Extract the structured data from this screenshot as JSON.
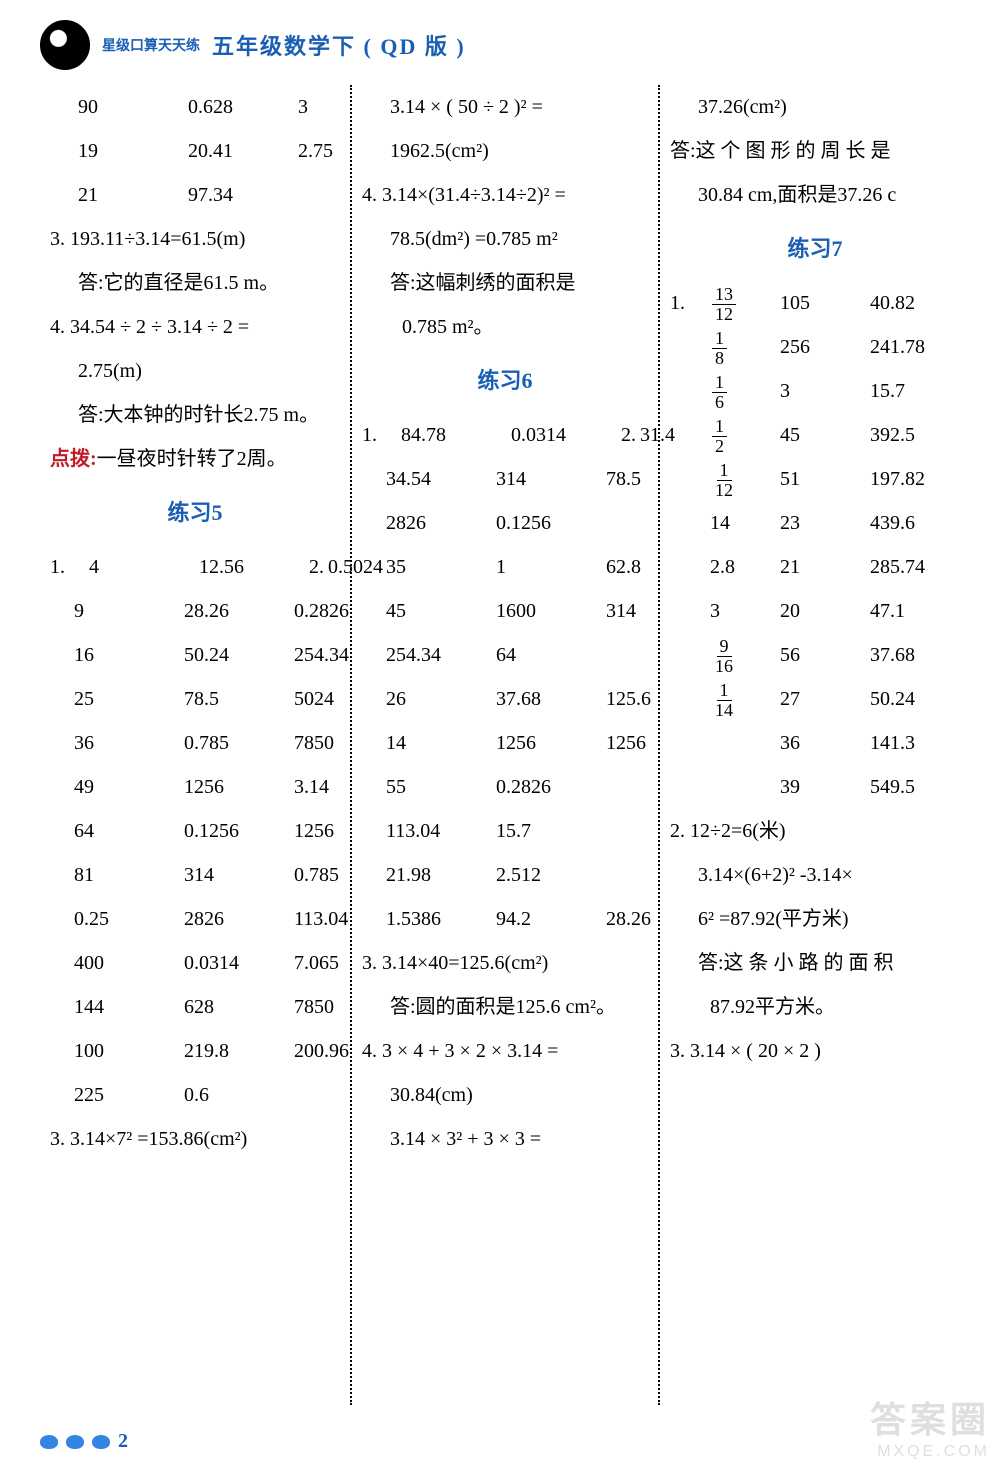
{
  "header": {
    "logo_sub": "星级口算天天练",
    "title": "五年级数学下 ( QD 版 )"
  },
  "col1": {
    "top_rows": [
      [
        "90",
        "0.628",
        "3"
      ],
      [
        "19",
        "20.41",
        "2.75"
      ],
      [
        "21",
        "97.34",
        ""
      ]
    ],
    "q3": "3. 193.11÷3.14=61.5(m)",
    "q3_ans": "答:它的直径是61.5 m。",
    "q4a": "4. 34.54 ÷ 2 ÷ 3.14 ÷ 2 =",
    "q4b": "2.75(m)",
    "q4_ans": "答:大本钟的时针长2.75 m。",
    "hint_label": "点拨:",
    "hint_text": "一昼夜时针转了2周。",
    "ex5_title": "练习5",
    "ex5_q1_prefix": "1.",
    "ex5_q2_prefix": "2.",
    "ex5_rows": [
      [
        "4",
        "12.56",
        "0.5024"
      ],
      [
        "9",
        "28.26",
        "0.2826"
      ],
      [
        "16",
        "50.24",
        "254.34"
      ],
      [
        "25",
        "78.5",
        "5024"
      ],
      [
        "36",
        "0.785",
        "7850"
      ],
      [
        "49",
        "1256",
        "3.14"
      ],
      [
        "64",
        "0.1256",
        "1256"
      ],
      [
        "81",
        "314",
        "0.785"
      ],
      [
        "0.25",
        "2826",
        "113.04"
      ],
      [
        "400",
        "0.0314",
        "7.065"
      ],
      [
        "144",
        "628",
        "7850"
      ],
      [
        "100",
        "219.8",
        "200.96"
      ],
      [
        "225",
        "0.6",
        ""
      ]
    ],
    "q3b": "3. 3.14×7² =153.86(cm²)"
  },
  "col2": {
    "top1": "3.14 × ( 50 ÷ 2 )² =",
    "top2": "1962.5(cm²)",
    "q4a": "4. 3.14×(31.4÷3.14÷2)² =",
    "q4b": "78.5(dm²) =0.785 m²",
    "q4_ans1": "答:这幅刺绣的面积是",
    "q4_ans2": "0.785 m²。",
    "ex6_title": "练习6",
    "ex6_q1_prefix": "1.",
    "ex6_q2_prefix": "2.",
    "ex6_rows": [
      [
        "84.78",
        "0.0314",
        "31.4"
      ],
      [
        "34.54",
        "314",
        "78.5"
      ],
      [
        "2826",
        "0.1256",
        ""
      ],
      [
        "35",
        "1",
        "62.8"
      ],
      [
        "45",
        "1600",
        "314"
      ],
      [
        "254.34",
        "64",
        ""
      ],
      [
        "26",
        "37.68",
        "125.6"
      ],
      [
        "14",
        "1256",
        "1256"
      ],
      [
        "55",
        "0.2826",
        ""
      ],
      [
        "113.04",
        "15.7",
        ""
      ],
      [
        "21.98",
        "2.512",
        ""
      ],
      [
        "1.5386",
        "94.2",
        "28.26"
      ]
    ],
    "q3a": "3. 3.14×40=125.6(cm²)",
    "q3_ans": "答:圆的面积是125.6 cm²。",
    "q4c": "4. 3 × 4 + 3 × 2 × 3.14 =",
    "q4d": "30.84(cm)",
    "q4e": "3.14 × 3² + 3 × 3 ="
  },
  "col3": {
    "top1": "37.26(cm²)",
    "ans1a": "答:这 个 图 形 的 周 长 是",
    "ans1b": "30.84 cm,面积是37.26 c",
    "ex7_title": "练习7",
    "ex7_q1_prefix": "1.",
    "ex7_rows": [
      {
        "frac": [
          13,
          12
        ],
        "b": "105",
        "c": "40.82"
      },
      {
        "frac": [
          1,
          8
        ],
        "b": "256",
        "c": "241.78"
      },
      {
        "frac": [
          1,
          6
        ],
        "b": "3",
        "c": "15.7"
      },
      {
        "frac": [
          1,
          2
        ],
        "b": "45",
        "c": "392.5"
      },
      {
        "frac": [
          1,
          12
        ],
        "b": "51",
        "c": "197.82"
      },
      {
        "a": "14",
        "b": "23",
        "c": "439.6"
      },
      {
        "a": "2.8",
        "b": "21",
        "c": "285.74"
      },
      {
        "a": "3",
        "b": "20",
        "c": "47.1"
      },
      {
        "frac": [
          9,
          16
        ],
        "b": "56",
        "c": "37.68"
      },
      {
        "frac": [
          1,
          14
        ],
        "b": "27",
        "c": "50.24"
      },
      {
        "a": "",
        "b": "36",
        "c": "141.3"
      },
      {
        "a": "",
        "b": "39",
        "c": "549.5"
      }
    ],
    "q2a": "2. 12÷2=6(米)",
    "q2b": "3.14×(6+2)² -3.14×",
    "q2c": "6² =87.92(平方米)",
    "q2_ans1": "答:这 条 小 路 的 面 积",
    "q2_ans2": "87.92平方米。",
    "q3a": "3. 3.14 × ( 20 × 2 )"
  },
  "footer": {
    "page": "2"
  },
  "watermark": {
    "line1": "答案圈",
    "line2": "MXQE.COM"
  }
}
